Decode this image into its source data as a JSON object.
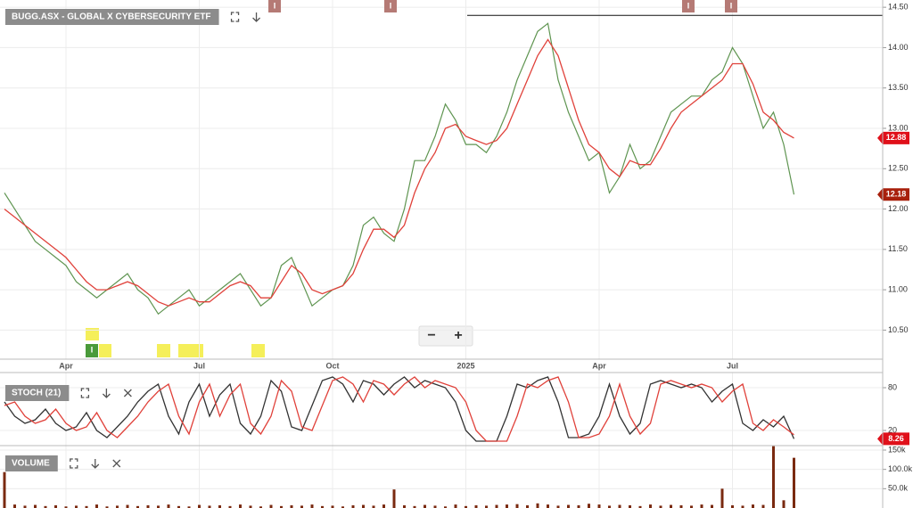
{
  "chart_data": [
    {
      "type": "line",
      "title": "BUGG.ASX - GLOBAL X CYBERSECURITY ETF",
      "categories": [
        null,
        null,
        null,
        null,
        null,
        null,
        "Apr",
        null,
        null,
        null,
        null,
        null,
        null,
        null,
        null,
        null,
        null,
        null,
        null,
        "Jul",
        null,
        null,
        null,
        null,
        null,
        null,
        null,
        null,
        null,
        null,
        null,
        null,
        "Oct",
        null,
        null,
        null,
        null,
        null,
        null,
        null,
        null,
        null,
        null,
        null,
        null,
        "2025",
        null,
        null,
        null,
        null,
        null,
        null,
        null,
        null,
        null,
        null,
        null,
        null,
        "Apr",
        null,
        null,
        null,
        null,
        null,
        null,
        null,
        null,
        null,
        null,
        null,
        null,
        "Jul",
        null,
        null,
        null,
        null,
        null,
        null
      ],
      "series": [
        {
          "color": "#5e9450",
          "values": [
            12.2,
            12.0,
            11.8,
            11.6,
            11.5,
            11.4,
            11.3,
            11.1,
            11.0,
            10.9,
            11.0,
            11.1,
            11.2,
            11.0,
            10.9,
            10.7,
            10.8,
            10.9,
            11.0,
            10.8,
            10.9,
            11.0,
            11.1,
            11.2,
            11.0,
            10.8,
            10.9,
            11.3,
            11.4,
            11.1,
            10.8,
            10.9,
            11.0,
            11.05,
            11.3,
            11.8,
            11.9,
            11.7,
            11.6,
            12.0,
            12.6,
            12.6,
            12.9,
            13.3,
            13.1,
            12.8,
            12.8,
            12.7,
            12.9,
            13.2,
            13.6,
            13.9,
            14.2,
            14.3,
            13.6,
            13.2,
            12.9,
            12.6,
            12.7,
            12.2,
            12.4,
            12.8,
            12.5,
            12.6,
            12.9,
            13.2,
            13.3,
            13.4,
            13.4,
            13.6,
            13.7,
            14.0,
            13.8,
            13.4,
            13.0,
            13.2,
            12.8,
            12.18
          ]
        },
        {
          "color": "#e0413a",
          "values": [
            12.0,
            11.9,
            11.8,
            11.7,
            11.6,
            11.5,
            11.4,
            11.25,
            11.1,
            11.0,
            11.0,
            11.05,
            11.1,
            11.05,
            10.95,
            10.85,
            10.8,
            10.85,
            10.9,
            10.85,
            10.85,
            10.95,
            11.05,
            11.1,
            11.05,
            10.9,
            10.9,
            11.1,
            11.3,
            11.2,
            11.0,
            10.95,
            11.0,
            11.05,
            11.2,
            11.5,
            11.75,
            11.75,
            11.65,
            11.8,
            12.2,
            12.5,
            12.7,
            13.0,
            13.05,
            12.9,
            12.85,
            12.8,
            12.85,
            13.0,
            13.3,
            13.6,
            13.9,
            14.1,
            13.9,
            13.5,
            13.1,
            12.8,
            12.7,
            12.5,
            12.4,
            12.6,
            12.55,
            12.55,
            12.75,
            13.0,
            13.2,
            13.3,
            13.4,
            13.5,
            13.6,
            13.8,
            13.8,
            13.55,
            13.2,
            13.1,
            12.95,
            12.88
          ]
        }
      ],
      "ylim": [
        10.14,
        14.59
      ],
      "yticks": [
        {
          "value": 10.5,
          "label": "10.50"
        },
        {
          "value": 11,
          "label": "11.00"
        },
        {
          "value": 11.5,
          "label": "11.50"
        },
        {
          "value": 12,
          "label": "12.00"
        },
        {
          "value": 12.5,
          "label": "12.50"
        },
        {
          "value": 13,
          "label": "13.00"
        },
        {
          "value": 13.5,
          "label": "13.50"
        },
        {
          "value": 14,
          "label": "14.00"
        },
        {
          "value": 14.5,
          "label": "14.50"
        }
      ],
      "grid": true,
      "resistance": 14.4,
      "price_tags": [
        {
          "value": 12.88,
          "label": "12.88",
          "color": "#e0101a"
        },
        {
          "value": 12.18,
          "label": "12.18",
          "color": "#a8200c"
        }
      ],
      "event_labels": [
        "I",
        "I",
        "I",
        "I",
        "I"
      ]
    },
    {
      "type": "line",
      "title": "STOCH (21)",
      "series": [
        {
          "color": "#333333",
          "values": [
            60,
            40,
            30,
            35,
            50,
            30,
            20,
            25,
            45,
            20,
            10,
            25,
            40,
            60,
            75,
            85,
            40,
            15,
            60,
            85,
            40,
            70,
            85,
            30,
            15,
            40,
            90,
            75,
            25,
            20,
            55,
            90,
            95,
            85,
            60,
            90,
            85,
            70,
            85,
            95,
            80,
            90,
            85,
            80,
            60,
            20,
            5,
            5,
            5,
            40,
            85,
            80,
            90,
            95,
            60,
            10,
            10,
            15,
            40,
            85,
            40,
            15,
            30,
            85,
            90,
            85,
            80,
            85,
            80,
            60,
            75,
            85,
            30,
            20,
            35,
            25,
            40,
            8.26
          ]
        },
        {
          "color": "#e0413a",
          "values": [
            55,
            60,
            40,
            30,
            35,
            50,
            30,
            20,
            25,
            45,
            20,
            10,
            25,
            40,
            60,
            75,
            85,
            40,
            15,
            60,
            85,
            40,
            70,
            85,
            30,
            15,
            40,
            90,
            75,
            25,
            20,
            55,
            90,
            95,
            85,
            60,
            90,
            85,
            70,
            85,
            95,
            80,
            90,
            85,
            80,
            60,
            20,
            5,
            5,
            5,
            40,
            85,
            80,
            90,
            95,
            60,
            10,
            10,
            15,
            40,
            85,
            40,
            15,
            30,
            85,
            90,
            85,
            80,
            85,
            80,
            60,
            75,
            85,
            30,
            20,
            35,
            25,
            14
          ]
        }
      ],
      "ylim": [
        -1.25,
        101.25
      ],
      "yticks": [
        20,
        80
      ],
      "grid": true,
      "price_tags": [
        {
          "value": 8.26,
          "label": "8.26",
          "color": "#e0101a"
        }
      ]
    },
    {
      "type": "bar",
      "title": "VOLUME",
      "color": "#7a2a10",
      "values": [
        93000,
        9000,
        6000,
        8000,
        5000,
        7000,
        4000,
        6000,
        5000,
        9000,
        4000,
        6000,
        8000,
        5000,
        7000,
        6000,
        9000,
        5000,
        4000,
        8000,
        6000,
        7000,
        5000,
        9000,
        6000,
        4000,
        8000,
        5000,
        7000,
        6000,
        9000,
        5000,
        6000,
        4000,
        7000,
        8000,
        6000,
        9000,
        48000,
        7000,
        5000,
        8000,
        6000,
        4000,
        9000,
        5000,
        7000,
        6000,
        8000,
        9000,
        10000,
        7000,
        12000,
        9000,
        6000,
        8000,
        7000,
        11000,
        9000,
        6000,
        8000,
        7000,
        5000,
        9000,
        6000,
        8000,
        7000,
        6000,
        9000,
        8000,
        50000,
        7000,
        6000,
        9000,
        8000,
        160000,
        20000,
        130000
      ],
      "ylim": [
        0,
        161500
      ],
      "yticks": [
        {
          "value": 50000,
          "label": "50.0k"
        },
        {
          "value": 100000,
          "label": "100.0k"
        },
        {
          "value": 150000,
          "label": "150k"
        }
      ],
      "grid": true
    }
  ],
  "ui": {
    "zoom_out": "−",
    "zoom_in": "+"
  }
}
